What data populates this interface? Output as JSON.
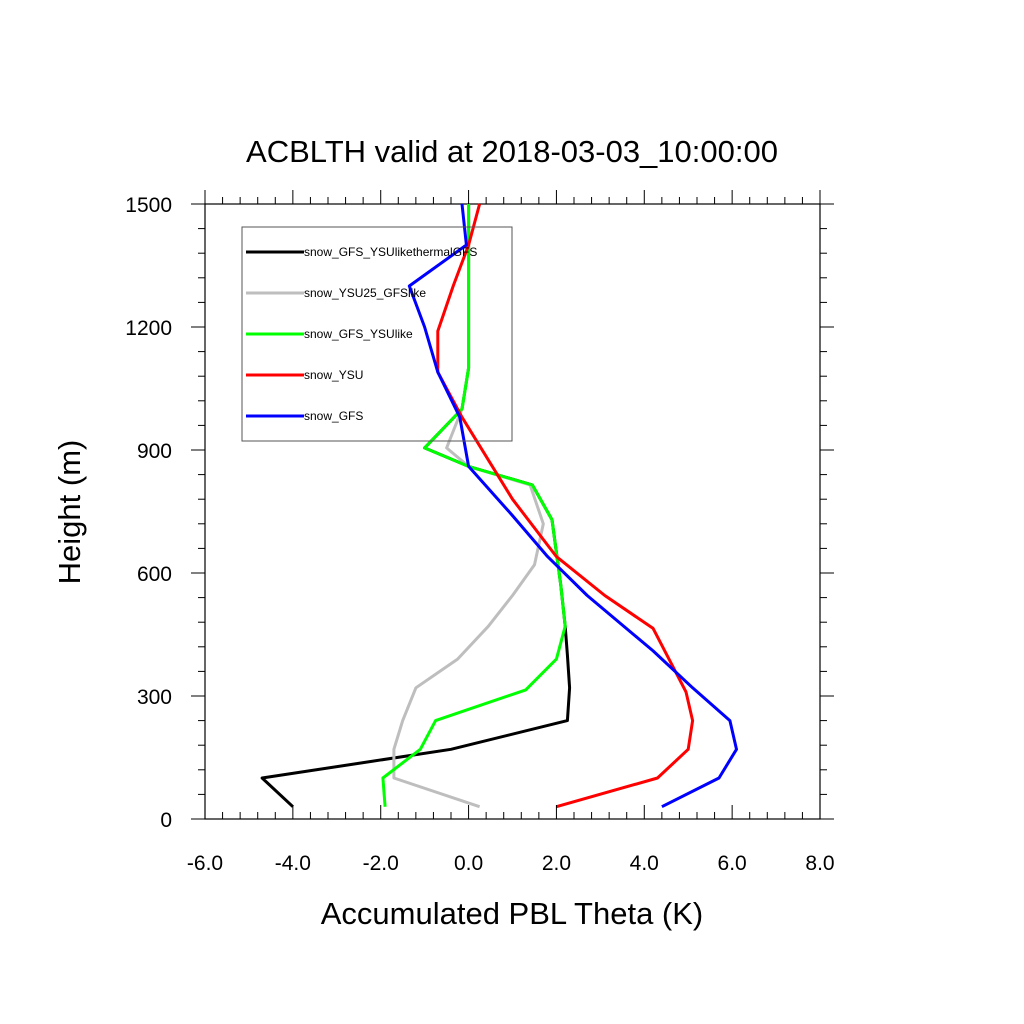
{
  "chart_data": {
    "type": "line",
    "title": "ACBLTH valid at 2018-03-03_10:00:00",
    "xlabel": "Accumulated PBL Theta (K)",
    "ylabel": "Height (m)",
    "xlim": [
      -6.0,
      8.0
    ],
    "ylim": [
      0,
      1500
    ],
    "x_ticks": [
      -6.0,
      -4.0,
      -2.0,
      0.0,
      2.0,
      4.0,
      6.0,
      8.0
    ],
    "x_tick_labels": [
      "-6.0",
      "-4.0",
      "-2.0",
      "0.0",
      "2.0",
      "4.0",
      "6.0",
      "8.0"
    ],
    "y_ticks": [
      0,
      300,
      600,
      900,
      1200,
      1500
    ],
    "y_tick_labels": [
      "0",
      "300",
      "600",
      "900",
      "1200",
      "1500"
    ],
    "grid": false,
    "legend_position": "top-left",
    "series": [
      {
        "name": "snow_GFS_YSUlikethermalGFS",
        "color": "#000000",
        "points": [
          [
            -4.0,
            30
          ],
          [
            -4.7,
            100
          ],
          [
            -0.4,
            170
          ],
          [
            2.25,
            240
          ],
          [
            2.3,
            320
          ],
          [
            2.25,
            400
          ],
          [
            2.2,
            470
          ],
          [
            2.1,
            570
          ],
          [
            1.9,
            730
          ],
          [
            1.45,
            815
          ],
          [
            0.0,
            860
          ],
          [
            -1.0,
            905
          ],
          [
            -0.15,
            1000
          ],
          [
            0.0,
            1100
          ],
          [
            0.0,
            1200
          ],
          [
            0.0,
            1300
          ],
          [
            0.0,
            1400
          ],
          [
            0.0,
            1500
          ]
        ]
      },
      {
        "name": "snow_YSU25_GFSlike",
        "color": "#bebebe",
        "points": [
          [
            0.25,
            30
          ],
          [
            -1.7,
            100
          ],
          [
            -1.7,
            170
          ],
          [
            -1.5,
            240
          ],
          [
            -1.2,
            320
          ],
          [
            -0.25,
            390
          ],
          [
            0.45,
            470
          ],
          [
            1.0,
            545
          ],
          [
            1.5,
            620
          ],
          [
            1.7,
            720
          ],
          [
            1.4,
            815
          ],
          [
            0.0,
            860
          ],
          [
            -0.5,
            905
          ],
          [
            -0.15,
            1000
          ],
          [
            0.0,
            1100
          ],
          [
            0.0,
            1200
          ],
          [
            0.0,
            1300
          ],
          [
            0.0,
            1400
          ],
          [
            0.0,
            1500
          ]
        ]
      },
      {
        "name": "snow_GFS_YSUlike",
        "color": "#00ff00",
        "points": [
          [
            -1.9,
            30
          ],
          [
            -1.95,
            100
          ],
          [
            -1.1,
            170
          ],
          [
            -0.75,
            240
          ],
          [
            1.3,
            315
          ],
          [
            2.0,
            390
          ],
          [
            2.2,
            470
          ],
          [
            2.1,
            570
          ],
          [
            1.9,
            730
          ],
          [
            1.45,
            815
          ],
          [
            0.0,
            860
          ],
          [
            -1.0,
            905
          ],
          [
            -0.15,
            1000
          ],
          [
            0.0,
            1100
          ],
          [
            0.0,
            1200
          ],
          [
            0.0,
            1300
          ],
          [
            0.0,
            1400
          ],
          [
            0.0,
            1500
          ]
        ]
      },
      {
        "name": "snow_YSU",
        "color": "#ff0000",
        "points": [
          [
            2.0,
            30
          ],
          [
            4.3,
            100
          ],
          [
            5.0,
            170
          ],
          [
            5.1,
            240
          ],
          [
            4.95,
            310
          ],
          [
            4.2,
            465
          ],
          [
            3.1,
            545
          ],
          [
            2.0,
            640
          ],
          [
            1.0,
            780
          ],
          [
            -0.15,
            980
          ],
          [
            -0.7,
            1090
          ],
          [
            -0.7,
            1190
          ],
          [
            -0.35,
            1300
          ],
          [
            0.0,
            1400
          ],
          [
            0.25,
            1500
          ]
        ]
      },
      {
        "name": "snow_GFS",
        "color": "#0000ff",
        "points": [
          [
            4.4,
            30
          ],
          [
            5.7,
            100
          ],
          [
            6.1,
            170
          ],
          [
            5.95,
            240
          ],
          [
            5.1,
            320
          ],
          [
            4.2,
            410
          ],
          [
            2.7,
            545
          ],
          [
            1.8,
            640
          ],
          [
            1.0,
            740
          ],
          [
            0.0,
            860
          ],
          [
            -0.2,
            980
          ],
          [
            -0.7,
            1090
          ],
          [
            -1.0,
            1200
          ],
          [
            -1.35,
            1300
          ],
          [
            -0.05,
            1400
          ],
          [
            -0.15,
            1500
          ]
        ]
      }
    ]
  }
}
